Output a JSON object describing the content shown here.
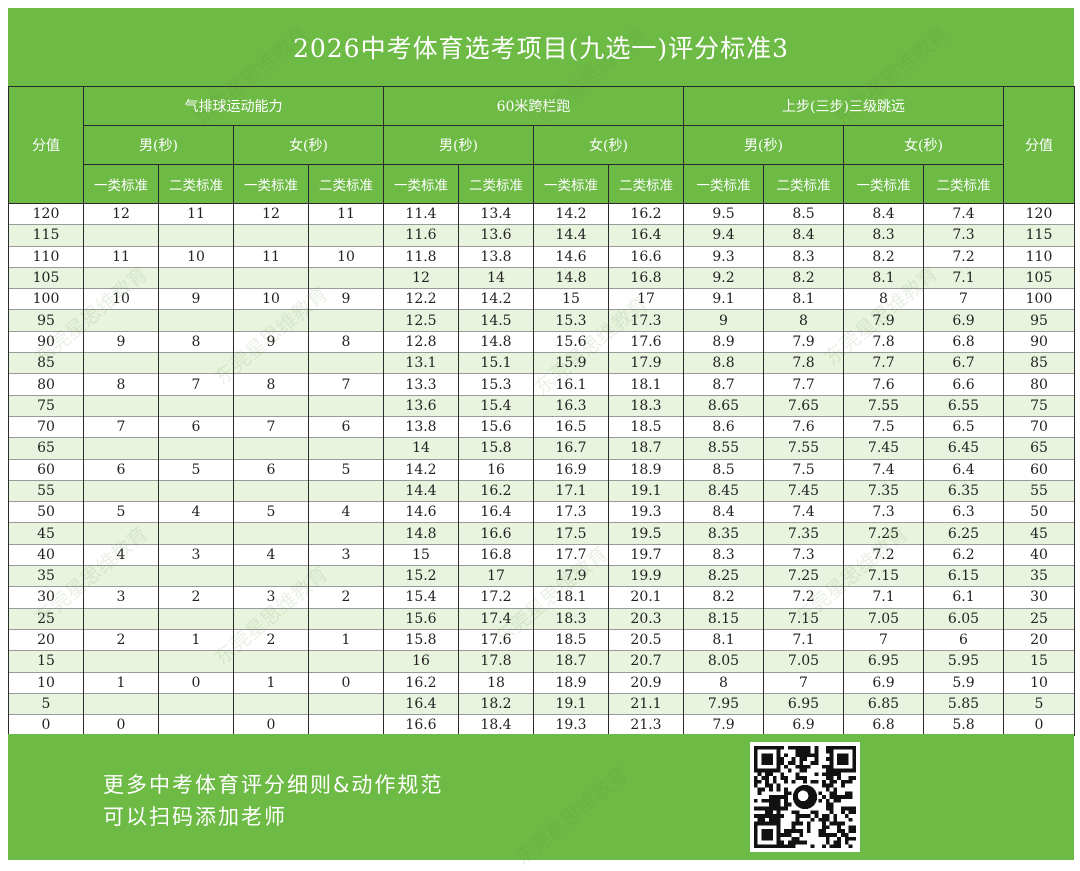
{
  "title": "2026中考体育选考项目(九选一)评分标准3",
  "headers": {
    "score": "分值",
    "events": [
      "气排球运动能力",
      "60米跨栏跑",
      "上步(三步)三级跳远"
    ],
    "genders": [
      "男(秒)",
      "女(秒)",
      "男(秒)",
      "女(秒)",
      "男(秒)",
      "女(秒)"
    ],
    "standards": [
      "一类标准",
      "二类标准",
      "一类标准",
      "二类标准",
      "一类标准",
      "二类标准",
      "一类标准",
      "二类标准",
      "一类标准",
      "二类标准",
      "一类标准",
      "二类标准"
    ]
  },
  "rows": [
    [
      "120",
      "12",
      "11",
      "12",
      "11",
      "11.4",
      "13.4",
      "14.2",
      "16.2",
      "9.5",
      "8.5",
      "8.4",
      "7.4",
      "120"
    ],
    [
      "115",
      "",
      "",
      "",
      "",
      "11.6",
      "13.6",
      "14.4",
      "16.4",
      "9.4",
      "8.4",
      "8.3",
      "7.3",
      "115"
    ],
    [
      "110",
      "11",
      "10",
      "11",
      "10",
      "11.8",
      "13.8",
      "14.6",
      "16.6",
      "9.3",
      "8.3",
      "8.2",
      "7.2",
      "110"
    ],
    [
      "105",
      "",
      "",
      "",
      "",
      "12",
      "14",
      "14.8",
      "16.8",
      "9.2",
      "8.2",
      "8.1",
      "7.1",
      "105"
    ],
    [
      "100",
      "10",
      "9",
      "10",
      "9",
      "12.2",
      "14.2",
      "15",
      "17",
      "9.1",
      "8.1",
      "8",
      "7",
      "100"
    ],
    [
      "95",
      "",
      "",
      "",
      "",
      "12.5",
      "14.5",
      "15.3",
      "17.3",
      "9",
      "8",
      "7.9",
      "6.9",
      "95"
    ],
    [
      "90",
      "9",
      "8",
      "9",
      "8",
      "12.8",
      "14.8",
      "15.6",
      "17.6",
      "8.9",
      "7.9",
      "7.8",
      "6.8",
      "90"
    ],
    [
      "85",
      "",
      "",
      "",
      "",
      "13.1",
      "15.1",
      "15.9",
      "17.9",
      "8.8",
      "7.8",
      "7.7",
      "6.7",
      "85"
    ],
    [
      "80",
      "8",
      "7",
      "8",
      "7",
      "13.3",
      "15.3",
      "16.1",
      "18.1",
      "8.7",
      "7.7",
      "7.6",
      "6.6",
      "80"
    ],
    [
      "75",
      "",
      "",
      "",
      "",
      "13.6",
      "15.4",
      "16.3",
      "18.3",
      "8.65",
      "7.65",
      "7.55",
      "6.55",
      "75"
    ],
    [
      "70",
      "7",
      "6",
      "7",
      "6",
      "13.8",
      "15.6",
      "16.5",
      "18.5",
      "8.6",
      "7.6",
      "7.5",
      "6.5",
      "70"
    ],
    [
      "65",
      "",
      "",
      "",
      "",
      "14",
      "15.8",
      "16.7",
      "18.7",
      "8.55",
      "7.55",
      "7.45",
      "6.45",
      "65"
    ],
    [
      "60",
      "6",
      "5",
      "6",
      "5",
      "14.2",
      "16",
      "16.9",
      "18.9",
      "8.5",
      "7.5",
      "7.4",
      "6.4",
      "60"
    ],
    [
      "55",
      "",
      "",
      "",
      "",
      "14.4",
      "16.2",
      "17.1",
      "19.1",
      "8.45",
      "7.45",
      "7.35",
      "6.35",
      "55"
    ],
    [
      "50",
      "5",
      "4",
      "5",
      "4",
      "14.6",
      "16.4",
      "17.3",
      "19.3",
      "8.4",
      "7.4",
      "7.3",
      "6.3",
      "50"
    ],
    [
      "45",
      "",
      "",
      "",
      "",
      "14.8",
      "16.6",
      "17.5",
      "19.5",
      "8.35",
      "7.35",
      "7.25",
      "6.25",
      "45"
    ],
    [
      "40",
      "4",
      "3",
      "4",
      "3",
      "15",
      "16.8",
      "17.7",
      "19.7",
      "8.3",
      "7.3",
      "7.2",
      "6.2",
      "40"
    ],
    [
      "35",
      "",
      "",
      "",
      "",
      "15.2",
      "17",
      "17.9",
      "19.9",
      "8.25",
      "7.25",
      "7.15",
      "6.15",
      "35"
    ],
    [
      "30",
      "3",
      "2",
      "3",
      "2",
      "15.4",
      "17.2",
      "18.1",
      "20.1",
      "8.2",
      "7.2",
      "7.1",
      "6.1",
      "30"
    ],
    [
      "25",
      "",
      "",
      "",
      "",
      "15.6",
      "17.4",
      "18.3",
      "20.3",
      "8.15",
      "7.15",
      "7.05",
      "6.05",
      "25"
    ],
    [
      "20",
      "2",
      "1",
      "2",
      "1",
      "15.8",
      "17.6",
      "18.5",
      "20.5",
      "8.1",
      "7.1",
      "7",
      "6",
      "20"
    ],
    [
      "15",
      "",
      "",
      "",
      "",
      "16",
      "17.8",
      "18.7",
      "20.7",
      "8.05",
      "7.05",
      "6.95",
      "5.95",
      "15"
    ],
    [
      "10",
      "1",
      "0",
      "1",
      "0",
      "16.2",
      "18",
      "18.9",
      "20.9",
      "8",
      "7",
      "6.9",
      "5.9",
      "10"
    ],
    [
      "5",
      "",
      "",
      "",
      "",
      "16.4",
      "18.2",
      "19.1",
      "21.1",
      "7.95",
      "6.95",
      "6.85",
      "5.85",
      "5"
    ],
    [
      "0",
      "0",
      "",
      "0",
      "",
      "16.6",
      "18.4",
      "19.3",
      "21.3",
      "7.9",
      "6.9",
      "6.8",
      "5.8",
      "0"
    ]
  ],
  "footer": {
    "line1": "更多中考体育评分细则&动作规范",
    "line2": "可以扫码添加老师"
  },
  "watermark": "东莞星思维教育",
  "colors": {
    "header_green": "#6dba45",
    "stripe_green": "#e9f4df",
    "text": "#222222"
  }
}
